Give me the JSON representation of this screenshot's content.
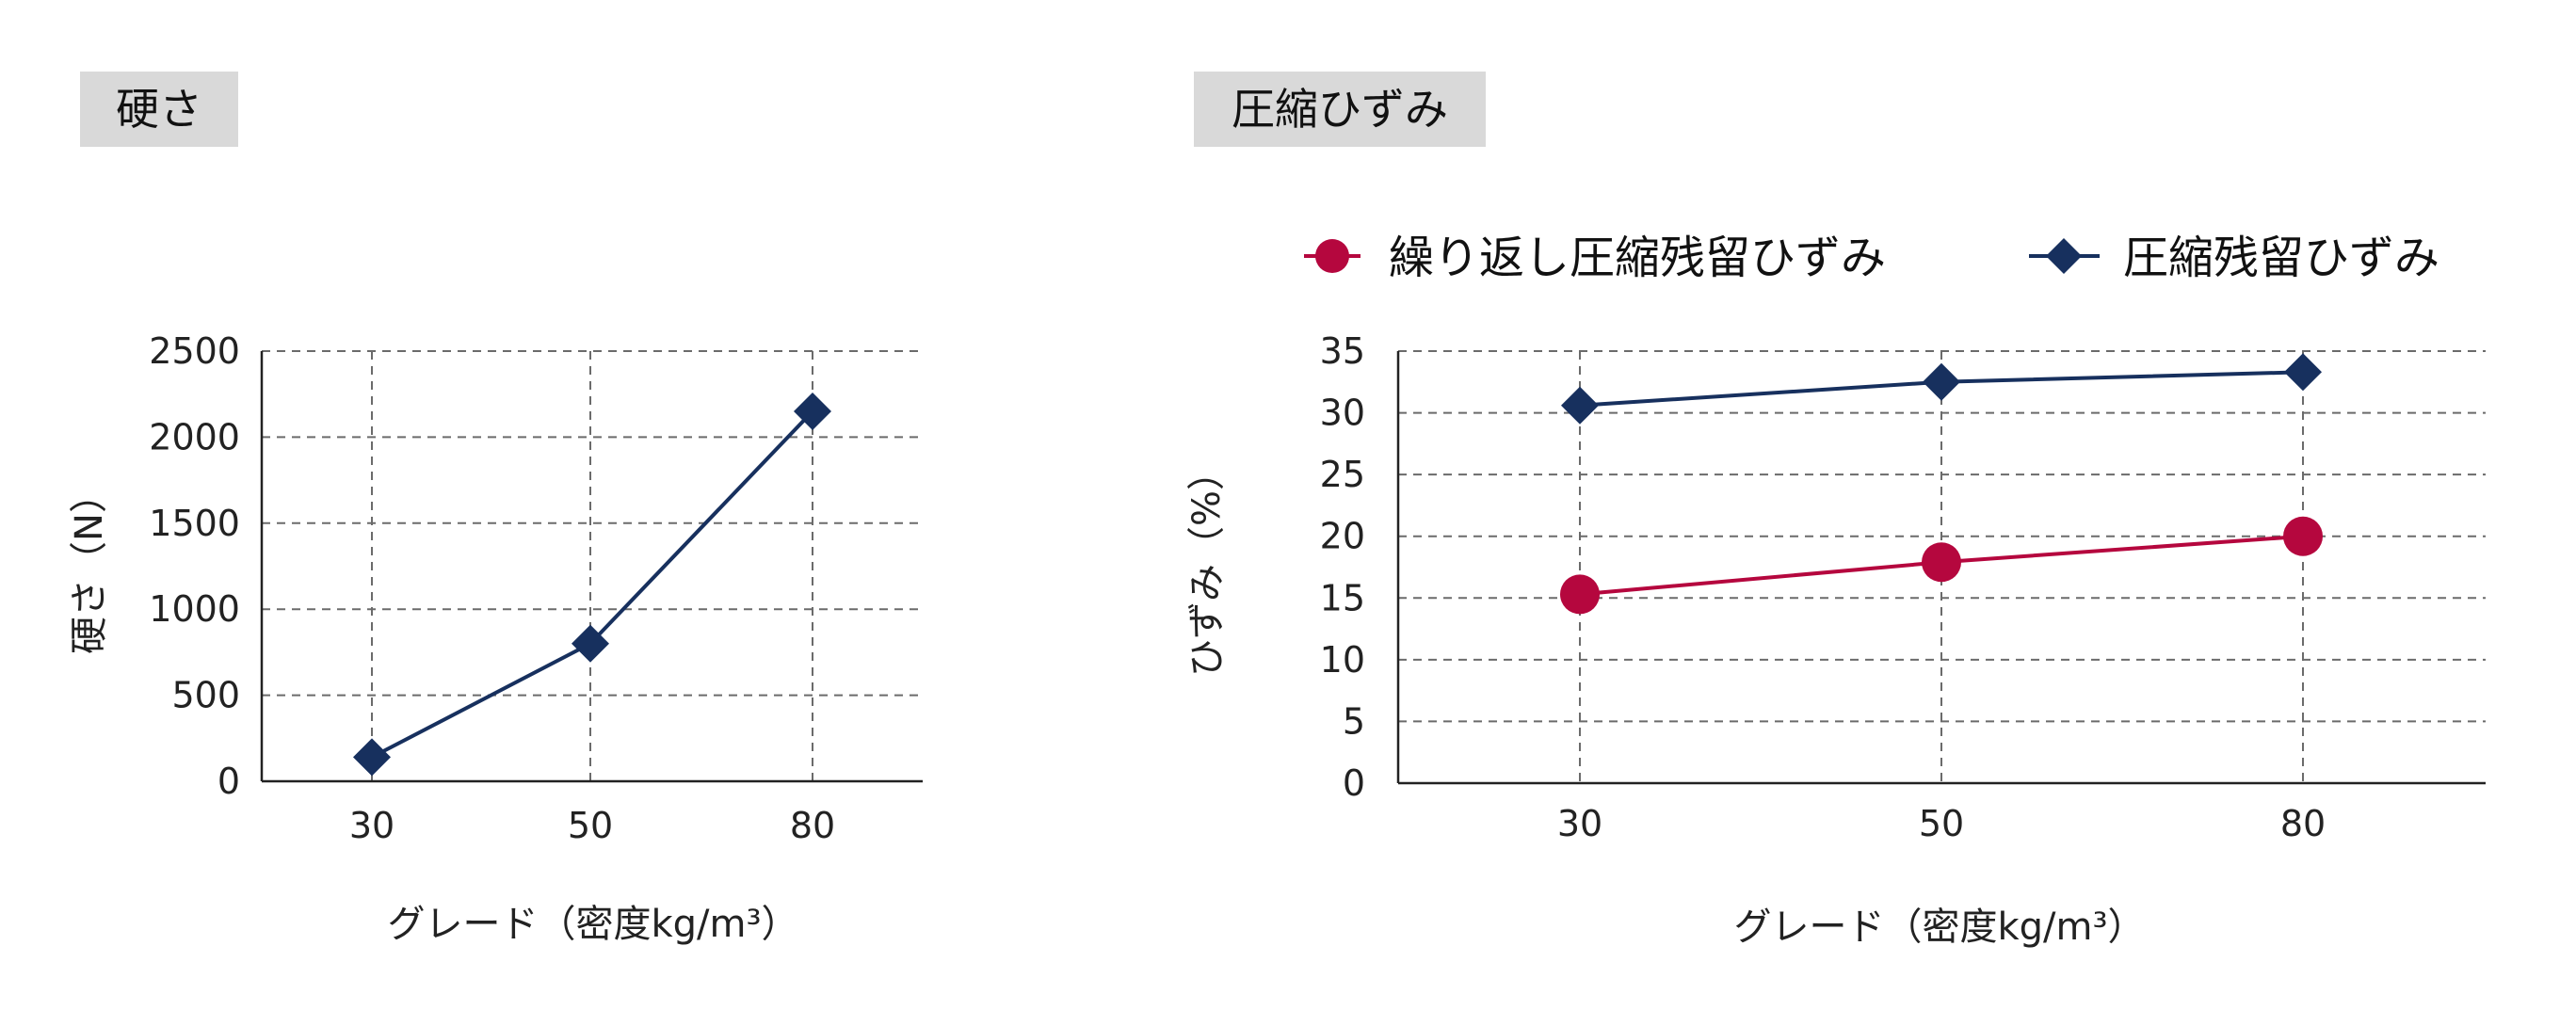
{
  "chart_data": [
    {
      "type": "line",
      "title": "硬さ",
      "categories": [
        "30",
        "50",
        "80"
      ],
      "series": [
        {
          "name": "硬さ",
          "values": [
            140,
            800,
            2150
          ],
          "color": "#17305e",
          "marker": "diamond"
        }
      ],
      "xlabel": "グレード（密度kg/m³）",
      "ylabel": "硬さ（N）",
      "ylim": [
        0,
        2500
      ],
      "yticks": [
        "0",
        "500",
        "1000",
        "1500",
        "2000",
        "2500"
      ],
      "grid": true
    },
    {
      "type": "line",
      "title": "圧縮ひずみ",
      "categories": [
        "30",
        "50",
        "80"
      ],
      "series": [
        {
          "name": "繰り返し圧縮残留ひずみ",
          "values": [
            15.3,
            17.9,
            20.0
          ],
          "color": "#b5073e",
          "marker": "circle"
        },
        {
          "name": "圧縮残留ひずみ",
          "values": [
            30.6,
            32.5,
            33.3
          ],
          "color": "#17305e",
          "marker": "diamond"
        }
      ],
      "xlabel": "グレード（密度kg/m³）",
      "ylabel": "ひずみ（%）",
      "ylim": [
        0,
        35
      ],
      "yticks": [
        "0",
        "5",
        "10",
        "15",
        "20",
        "25",
        "30",
        "35"
      ],
      "grid": true,
      "legend": "top"
    }
  ]
}
